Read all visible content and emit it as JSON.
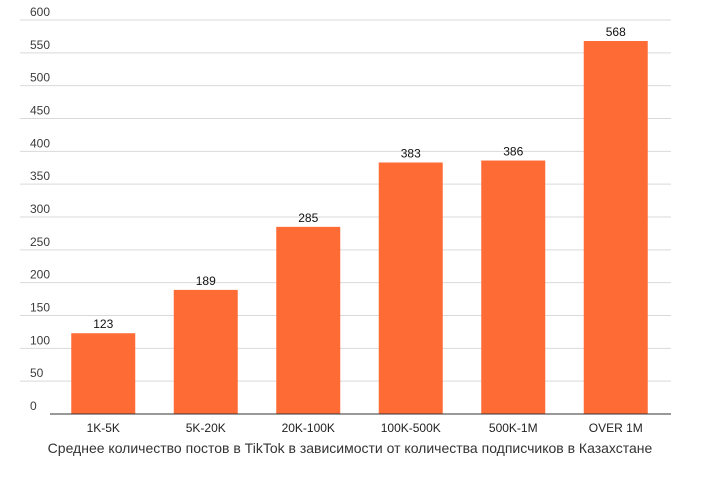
{
  "chart_data": {
    "type": "bar",
    "title": "",
    "xlabel": "Среднее количество постов в TikTok в зависимости от количества подписчиков в Казахстане",
    "ylabel": "",
    "categories": [
      "1K-5K",
      "5K-20K",
      "20K-100K",
      "100K-500K",
      "500K-1M",
      "OVER 1M"
    ],
    "values": [
      123,
      189,
      285,
      383,
      386,
      568
    ],
    "ylim": [
      0,
      600
    ],
    "yticks": [
      0,
      50,
      100,
      150,
      200,
      250,
      300,
      350,
      400,
      450,
      500,
      550,
      600
    ],
    "grid": true,
    "legend": "none",
    "bar_color": "#ff6b35",
    "data_labels": true
  }
}
